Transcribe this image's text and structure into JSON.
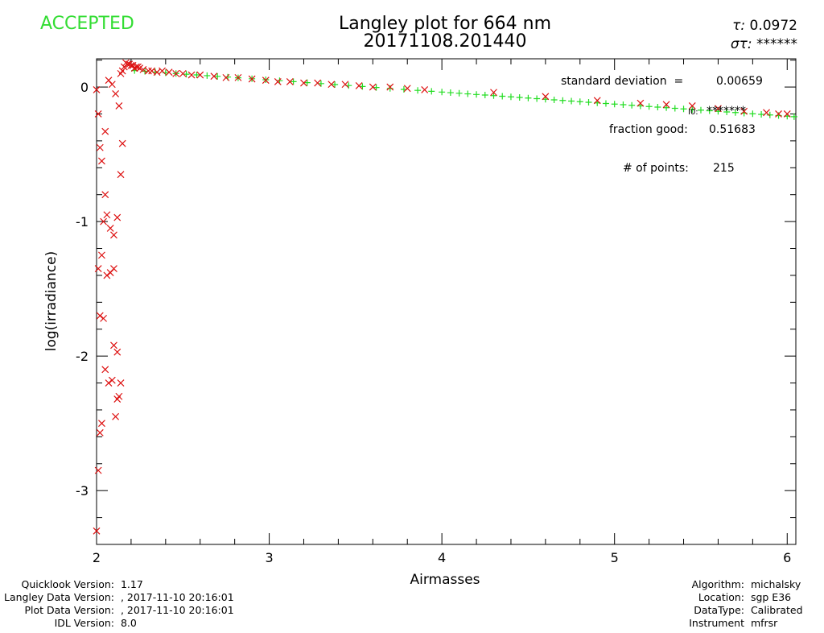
{
  "header": {
    "status": "ACCEPTED",
    "title_line1": "Langley plot for 664 nm",
    "title_line2": "20171108.201440",
    "tau_label": "τ:",
    "tau_value": "0.0972",
    "sigma_label": "στ:",
    "sigma_value": "******"
  },
  "stats": {
    "std_label": "standard deviation  =",
    "std_value": "0.00659",
    "i0_label": "I0:",
    "i0_value": "*******",
    "fraction_label": "fraction good:",
    "fraction_value": "0.51683",
    "points_label": "# of points:",
    "points_value": "215"
  },
  "chart_data": {
    "type": "scatter",
    "title": "Langley plot for 664 nm",
    "xlabel": "Airmasses",
    "ylabel": "log(irradiance)",
    "xlim": [
      2,
      6.05
    ],
    "ylim": [
      -3.4,
      0.21
    ],
    "xticks": [
      2,
      3,
      4,
      5,
      6
    ],
    "yticks": [
      0,
      -1,
      -2,
      -3
    ],
    "colors": {
      "good": "#22dd22",
      "rejected": "#dd1111"
    },
    "good_points": {
      "marker": "+",
      "fit_line": {
        "intercept": 0.3216,
        "slope": -0.0897
      },
      "x": [
        2.22,
        2.28,
        2.34,
        2.4,
        2.46,
        2.52,
        2.58,
        2.64,
        2.7,
        2.76,
        2.82,
        2.9,
        2.98,
        3.06,
        3.14,
        3.22,
        3.3,
        3.38,
        3.46,
        3.54,
        3.62,
        3.7,
        3.78,
        3.86,
        3.94,
        4.0,
        4.05,
        4.1,
        4.15,
        4.2,
        4.25,
        4.3,
        4.35,
        4.4,
        4.45,
        4.5,
        4.55,
        4.6,
        4.65,
        4.7,
        4.75,
        4.8,
        4.85,
        4.9,
        4.95,
        5.0,
        5.05,
        5.1,
        5.15,
        5.2,
        5.25,
        5.3,
        5.35,
        5.4,
        5.45,
        5.5,
        5.55,
        5.6,
        5.65,
        5.7,
        5.75,
        5.8,
        5.85,
        5.9,
        5.95,
        6.0,
        6.04
      ]
    },
    "rejected_points": {
      "marker": "×",
      "x": [
        2.0,
        2.01,
        2.02,
        2.03,
        2.05,
        2.04,
        2.06,
        2.08,
        2.1,
        2.12,
        2.14,
        2.15,
        2.13,
        2.11,
        2.09,
        2.07,
        2.05,
        2.03,
        2.01,
        2.02,
        2.04,
        2.06,
        2.08,
        2.1,
        2.12,
        2.14,
        2.13,
        2.11,
        2.09,
        2.07,
        2.05,
        2.03,
        2.02,
        2.01,
        2.0,
        2.1,
        2.12,
        2.14,
        2.16,
        2.18,
        2.2,
        2.22,
        2.24,
        2.15,
        2.17,
        2.19,
        2.21,
        2.23,
        2.25,
        2.27,
        2.3,
        2.32,
        2.35,
        2.38,
        2.42,
        2.46,
        2.5,
        2.55,
        2.6,
        2.68,
        2.75,
        2.82,
        2.9,
        2.98,
        3.05,
        3.12,
        3.2,
        3.28,
        3.36,
        3.44,
        3.52,
        3.6,
        3.7,
        3.8,
        3.9,
        4.3,
        4.6,
        4.9,
        5.15,
        5.3,
        5.45,
        5.6,
        5.75,
        5.88,
        5.95,
        6.0
      ],
      "y": [
        -0.02,
        -0.2,
        -0.45,
        -0.55,
        -0.8,
        -1.0,
        -0.95,
        -1.05,
        -1.1,
        -0.97,
        -0.65,
        -0.42,
        -0.14,
        -0.05,
        0.02,
        0.05,
        -0.33,
        -1.25,
        -1.35,
        -1.7,
        -1.72,
        -1.4,
        -1.38,
        -1.35,
        -1.97,
        -2.2,
        -2.3,
        -2.45,
        -2.18,
        -2.2,
        -2.1,
        -2.5,
        -2.57,
        -2.85,
        -3.3,
        -1.92,
        -2.32,
        0.1,
        0.15,
        0.17,
        0.16,
        0.14,
        0.15,
        0.12,
        0.18,
        0.17,
        0.16,
        0.15,
        0.14,
        0.13,
        0.12,
        0.12,
        0.11,
        0.12,
        0.11,
        0.1,
        0.1,
        0.09,
        0.09,
        0.08,
        0.07,
        0.07,
        0.06,
        0.05,
        0.04,
        0.04,
        0.03,
        0.03,
        0.02,
        0.02,
        0.01,
        0.0,
        0.0,
        -0.01,
        -0.02,
        -0.04,
        -0.07,
        -0.1,
        -0.12,
        -0.13,
        -0.14,
        -0.16,
        -0.18,
        -0.19,
        -0.2,
        -0.2
      ]
    }
  },
  "footer": {
    "left": [
      {
        "label": "Quicklook Version:",
        "value": "1.17"
      },
      {
        "label": "Langley Data Version:",
        "value": ", 2017-11-10 20:16:01"
      },
      {
        "label": "Plot Data Version:",
        "value": ", 2017-11-10 20:16:01"
      },
      {
        "label": "IDL Version:",
        "value": "8.0"
      }
    ],
    "right": [
      {
        "label": "Algorithm:",
        "value": "michalsky"
      },
      {
        "label": "Location:",
        "value": "sgp E36"
      },
      {
        "label": "DataType:",
        "value": "Calibrated"
      },
      {
        "label": "Instrument",
        "value": "mfrsr"
      }
    ]
  }
}
